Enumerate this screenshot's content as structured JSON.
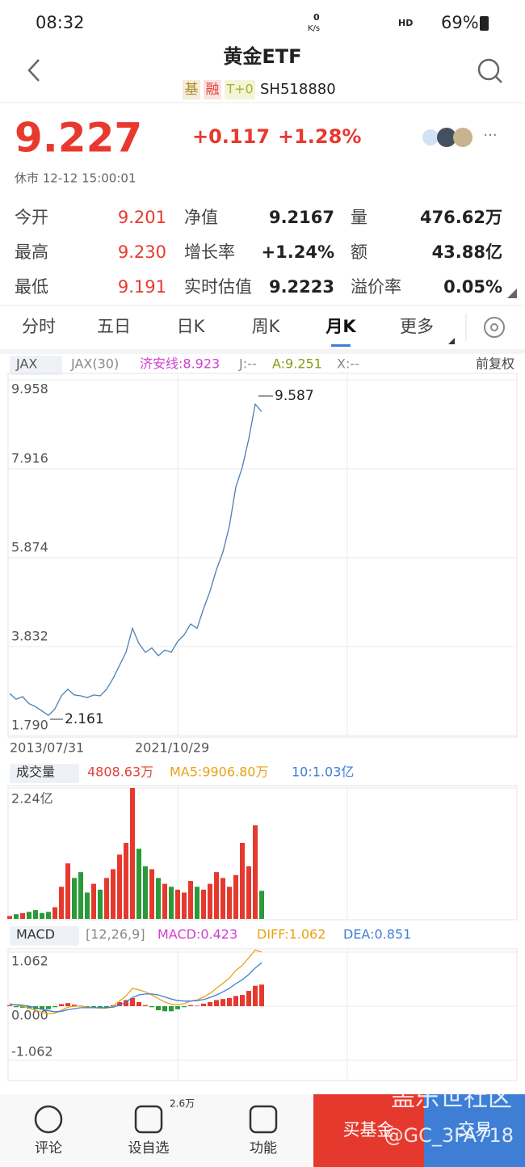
{
  "status_bar": {
    "time": "08:32",
    "net_speed": "0",
    "net_unit": "K/s",
    "network": "HD",
    "battery": "69%"
  },
  "header": {
    "title": "黄金ETF",
    "tags": [
      "基",
      "融",
      "T+0"
    ],
    "code": "SH518880"
  },
  "quote": {
    "price": "9.227",
    "change": "+0.117",
    "change_pct": "+1.28%",
    "status": "休市 12-12 15:00:01"
  },
  "stats": [
    [
      [
        "今开",
        "9.201"
      ],
      [
        "净值",
        "9.2167"
      ],
      [
        "量",
        "476.62万"
      ]
    ],
    [
      [
        "最高",
        "9.230"
      ],
      [
        "增长率",
        "+1.24%"
      ],
      [
        "额",
        "43.88亿"
      ]
    ],
    [
      [
        "最低",
        "9.191"
      ],
      [
        "实时估值",
        "9.2223"
      ],
      [
        "溢价率",
        "0.05%"
      ]
    ]
  ],
  "tabs": [
    "分时",
    "五日",
    "日K",
    "周K",
    "月K",
    "更多"
  ],
  "price_chart": {
    "legend": [
      "JAX",
      "JAX(30)",
      "济安线:8.923",
      "J:--",
      "A:9.251",
      "X:--"
    ],
    "adjust": "前复权",
    "ylim": [
      1.79,
      9.958
    ],
    "yticks": [
      9.958,
      7.916,
      5.874,
      3.832,
      {
        "value": 1.79,
        "label": "1.790"
      }
    ],
    "values": [
      2.75,
      2.62,
      2.68,
      2.52,
      2.45,
      2.35,
      2.25,
      2.4,
      2.7,
      2.85,
      2.72,
      2.7,
      2.66,
      2.72,
      2.7,
      2.85,
      3.1,
      3.4,
      3.7,
      4.25,
      3.9,
      3.7,
      3.8,
      3.62,
      3.75,
      3.7,
      3.95,
      4.1,
      4.35,
      4.25,
      4.7,
      5.1,
      5.6,
      6.0,
      6.6,
      7.5,
      7.95,
      8.6,
      9.4,
      9.227
    ],
    "high": 9.587,
    "low": 2.161,
    "x_labels": [
      "2013/07/31",
      "2021/10/29"
    ]
  },
  "volume_chart": {
    "legend": [
      "成交量",
      "4808.63万",
      "MA5:9906.80万",
      "10:1.03亿"
    ],
    "ylim": [
      0,
      2.24
    ],
    "yticks": [
      {
        "value": 2.24,
        "label": "2.24亿"
      }
    ],
    "values": [
      0.05,
      0.08,
      0.1,
      0.12,
      0.15,
      0.1,
      0.12,
      0.2,
      0.55,
      0.95,
      0.7,
      0.8,
      0.45,
      0.6,
      0.5,
      0.7,
      0.85,
      1.1,
      1.3,
      2.24,
      1.2,
      0.9,
      0.85,
      0.7,
      0.6,
      0.55,
      0.5,
      0.45,
      0.65,
      0.55,
      0.5,
      0.6,
      0.8,
      0.7,
      0.55,
      0.75,
      1.3,
      0.9,
      1.6,
      0.48
    ]
  },
  "macd_chart": {
    "legend": [
      "MACD",
      "[12,26,9]",
      "MACD:0.423",
      "DIFF:1.062",
      "DEA:0.851"
    ],
    "ylim": [
      -1.062,
      1.062
    ],
    "yticks": [
      1.062,
      {
        "value": 0,
        "label": "0.000"
      },
      -1.062
    ],
    "macd": [
      0.02,
      -0.02,
      -0.03,
      -0.05,
      -0.06,
      -0.07,
      -0.06,
      -0.02,
      0.04,
      0.06,
      0.03,
      0.01,
      -0.02,
      -0.03,
      -0.04,
      -0.03,
      0.02,
      0.08,
      0.12,
      0.16,
      0.08,
      0.02,
      -0.02,
      -0.08,
      -0.1,
      -0.1,
      -0.06,
      -0.02,
      0.02,
      0.01,
      0.05,
      0.08,
      0.12,
      0.14,
      0.16,
      0.2,
      0.22,
      0.3,
      0.4,
      0.423
    ],
    "diff": [
      0.05,
      0.02,
      0,
      -0.04,
      -0.08,
      -0.12,
      -0.15,
      -0.14,
      -0.08,
      -0.02,
      0,
      0,
      -0.02,
      -0.03,
      -0.04,
      -0.04,
      0,
      0.1,
      0.2,
      0.35,
      0.32,
      0.28,
      0.22,
      0.15,
      0.08,
      0.04,
      0.03,
      0.05,
      0.1,
      0.12,
      0.18,
      0.25,
      0.35,
      0.45,
      0.55,
      0.7,
      0.8,
      0.95,
      1.1,
      1.062
    ],
    "dea": [
      0.04,
      0.03,
      0.02,
      0,
      -0.03,
      -0.06,
      -0.09,
      -0.11,
      -0.1,
      -0.07,
      -0.05,
      -0.03,
      -0.03,
      -0.03,
      -0.03,
      -0.03,
      -0.02,
      0.02,
      0.08,
      0.17,
      0.22,
      0.24,
      0.24,
      0.22,
      0.18,
      0.14,
      0.11,
      0.1,
      0.1,
      0.11,
      0.13,
      0.17,
      0.22,
      0.28,
      0.35,
      0.44,
      0.52,
      0.62,
      0.75,
      0.851
    ]
  },
  "nav": {
    "items": [
      "评论",
      "设自选",
      "功能"
    ],
    "badge": "2.6万",
    "buy": "买基金",
    "trade": "交易"
  },
  "watermark": [
    "盖乐世社区",
    "@GC_3FA718"
  ]
}
